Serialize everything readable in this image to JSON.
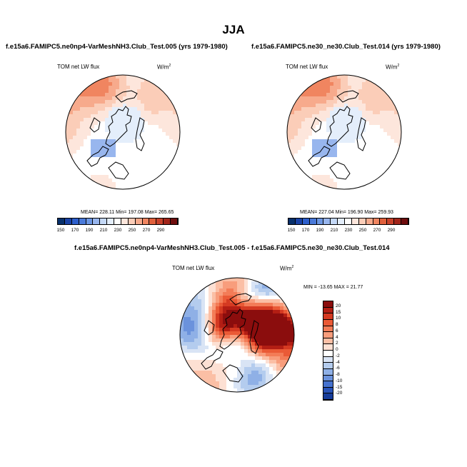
{
  "figure": {
    "title": "JJA",
    "panels": [
      {
        "case": "f.e15a6.FAMIPC5.ne0np4-VarMeshNH3.Club_Test.005 (yrs 1979-1980)",
        "variable": "TOM net LW flux",
        "units_base": "W/m",
        "units_exp": "2",
        "stats": "MEAN= 228.11  Min= 197.08  Max= 265.65"
      },
      {
        "case": "f.e15a6.FAMIPC5.ne30_ne30.Club_Test.014 (yrs 1979-1980)",
        "variable": "TOM net LW flux",
        "units_base": "W/m",
        "units_exp": "2",
        "stats": "MEAN= 227.04  Min= 196.90  Max= 259.93"
      }
    ],
    "difference": {
      "title": "f.e15a6.FAMIPC5.ne0np4-VarMeshNH3.Club_Test.005 - f.e15a6.FAMIPC5.ne30_ne30.Club_Test.014",
      "variable": "TOM net LW flux",
      "units_base": "W/m",
      "units_exp": "2",
      "stats": "MIN = -13.65 MAX =  21.77"
    }
  },
  "chart_data": [
    {
      "type": "heatmap",
      "projection": "north-polar-stereographic",
      "title": "f.e15a6.FAMIPC5.ne0np4-VarMeshNH3.Club_Test.005 (yrs 1979-1980)",
      "variable": "TOM net LW flux",
      "units": "W/m2",
      "mean": 228.11,
      "min": 197.08,
      "max": 265.65,
      "colorbar_levels": [
        150,
        170,
        190,
        210,
        230,
        250,
        270,
        290
      ],
      "colorbar_colors": [
        "#08306b",
        "#1a43a6",
        "#2d5fcc",
        "#4a7ad9",
        "#6d97e3",
        "#98b6ee",
        "#c4d8f6",
        "#e4eefb",
        "#ffffff",
        "#fde6dc",
        "#fbcdb8",
        "#f7aa8c",
        "#f08560",
        "#e0603c",
        "#c8412a",
        "#a2251a",
        "#6e0d0d"
      ]
    },
    {
      "type": "heatmap",
      "projection": "north-polar-stereographic",
      "title": "f.e15a6.FAMIPC5.ne30_ne30.Club_Test.014 (yrs 1979-1980)",
      "variable": "TOM net LW flux",
      "units": "W/m2",
      "mean": 227.04,
      "min": 196.9,
      "max": 259.93,
      "colorbar_levels": [
        150,
        170,
        190,
        210,
        230,
        250,
        270,
        290
      ],
      "colorbar_colors": [
        "#08306b",
        "#1a43a6",
        "#2d5fcc",
        "#4a7ad9",
        "#6d97e3",
        "#98b6ee",
        "#c4d8f6",
        "#e4eefb",
        "#ffffff",
        "#fde6dc",
        "#fbcdb8",
        "#f7aa8c",
        "#f08560",
        "#e0603c",
        "#c8412a",
        "#a2251a",
        "#6e0d0d"
      ]
    },
    {
      "type": "heatmap",
      "projection": "north-polar-stereographic",
      "title": "f.e15a6.FAMIPC5.ne0np4-VarMeshNH3.Club_Test.005 - f.e15a6.FAMIPC5.ne30_ne30.Club_Test.014",
      "variable": "TOM net LW flux",
      "units": "W/m2",
      "min": -13.65,
      "max": 21.77,
      "colorbar_labels": [
        "20",
        "15",
        "10",
        "8",
        "6",
        "4",
        "2",
        "0",
        "-2",
        "-4",
        "-6",
        "-8",
        "-10",
        "-15",
        "-20"
      ],
      "colorbar_colors": [
        "#8b0d0d",
        "#b31e14",
        "#d53a22",
        "#ea5a36",
        "#f37c57",
        "#f89d7c",
        "#fbbfa5",
        "#fde0d3",
        "#ffffff",
        "#d9e4f5",
        "#b4ccee",
        "#8fb0e6",
        "#6b92dc",
        "#4672cf",
        "#2953b8",
        "#163c9a"
      ]
    }
  ]
}
